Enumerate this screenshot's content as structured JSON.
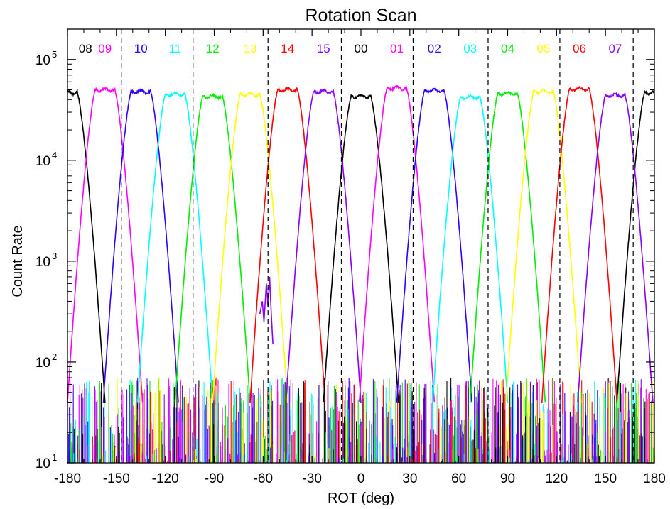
{
  "chart_data": {
    "type": "line",
    "title": "Rotation Scan",
    "xlabel": "ROT (deg)",
    "ylabel": "Count Rate",
    "xlim": [
      -180,
      180
    ],
    "ylim": [
      10,
      200000
    ],
    "yscale": "log",
    "x_ticks": [
      -180,
      -150,
      -120,
      -90,
      -60,
      -30,
      0,
      30,
      60,
      90,
      120,
      150,
      180
    ],
    "x_tick_labels": [
      "-180",
      "-150",
      "-120",
      "-90",
      "-60",
      "-30",
      "0",
      "30",
      "60",
      "90",
      "120",
      "150",
      "180"
    ],
    "y_ticks": [
      {
        "base": "10",
        "exp": "1"
      },
      {
        "base": "10",
        "exp": "2"
      },
      {
        "base": "10",
        "exp": "3"
      },
      {
        "base": "10",
        "exp": "4"
      },
      {
        "base": "10",
        "exp": "5"
      }
    ],
    "y_tick_values": [
      10,
      100,
      1000,
      10000,
      100000
    ],
    "dashed_vlines": [
      -147,
      -103,
      -57,
      -12,
      32,
      78,
      122,
      167
    ],
    "grid": false,
    "legend": "labels at top of plot area",
    "series": [
      {
        "name": "08",
        "color": "#000000",
        "center": -180,
        "peak": 47000,
        "wrap": true
      },
      {
        "name": "09",
        "color": "#ff00ff",
        "center": -157,
        "peak": 50000
      },
      {
        "name": "10",
        "color": "#3300ff",
        "center": -135,
        "peak": 48000
      },
      {
        "name": "11",
        "color": "#00ffff",
        "center": -114,
        "peak": 45000
      },
      {
        "name": "12",
        "color": "#00ee00",
        "center": -91,
        "peak": 43000
      },
      {
        "name": "13",
        "color": "#ffff00",
        "center": -68,
        "peak": 45000
      },
      {
        "name": "14",
        "color": "#ff0000",
        "center": -45,
        "peak": 50000
      },
      {
        "name": "15",
        "color": "#8800ff",
        "center": -23,
        "peak": 48000
      },
      {
        "name": "00",
        "color": "#000000",
        "center": 0,
        "peak": 43000
      },
      {
        "name": "01",
        "color": "#ff00ff",
        "center": 22,
        "peak": 52000
      },
      {
        "name": "02",
        "color": "#3300ff",
        "center": 45,
        "peak": 49000
      },
      {
        "name": "03",
        "color": "#00ffff",
        "center": 67,
        "peak": 42000
      },
      {
        "name": "04",
        "color": "#00ee00",
        "center": 90,
        "peak": 46000
      },
      {
        "name": "05",
        "color": "#ffff00",
        "center": 112,
        "peak": 48000
      },
      {
        "name": "06",
        "color": "#ff0000",
        "center": 134,
        "peak": 51000
      },
      {
        "name": "07",
        "color": "#8800ff",
        "center": 156,
        "peak": 44000
      }
    ]
  }
}
